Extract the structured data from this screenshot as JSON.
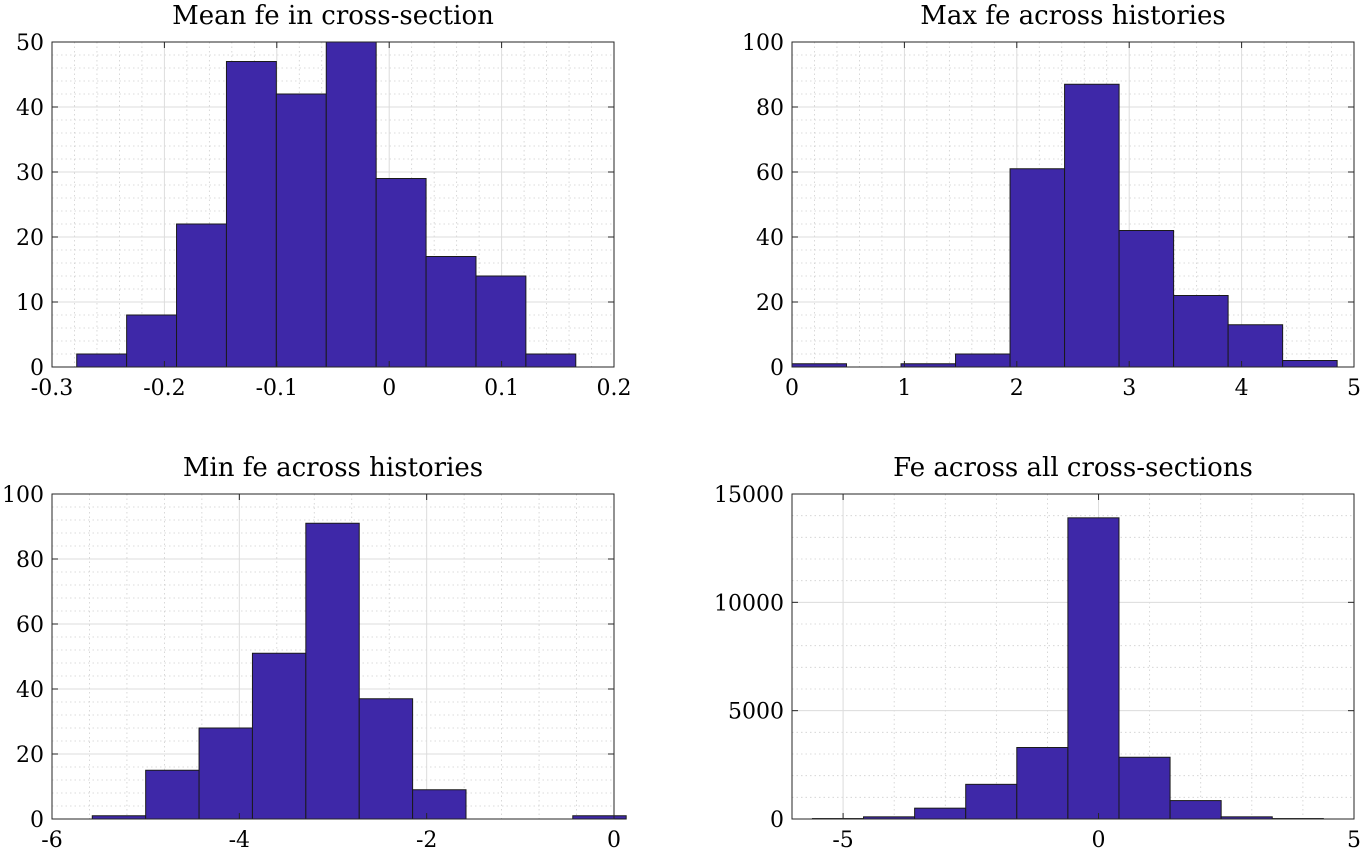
{
  "chart_data": [
    {
      "type": "bar",
      "title": "Mean fe in cross-section",
      "xlim": [
        -0.3,
        0.2
      ],
      "ylim": [
        0,
        50
      ],
      "xticks": [
        "-0.3",
        "-0.2",
        "-0.1",
        "0",
        "0.1",
        "0.2"
      ],
      "yticks": [
        "0",
        "10",
        "20",
        "30",
        "40",
        "50"
      ],
      "bin_edges": [
        -0.278,
        -0.2336,
        -0.1892,
        -0.1448,
        -0.1004,
        -0.056,
        -0.0116,
        0.0328,
        0.0772,
        0.1216,
        0.166
      ],
      "values": [
        2,
        8,
        22,
        47,
        42,
        50,
        29,
        17,
        14,
        2
      ],
      "grid": true
    },
    {
      "type": "bar",
      "title": "Max fe across histories",
      "xlim": [
        0,
        5
      ],
      "ylim": [
        0,
        100
      ],
      "xticks": [
        "0",
        "1",
        "2",
        "3",
        "4",
        "5"
      ],
      "yticks": [
        "0",
        "20",
        "40",
        "60",
        "80",
        "100"
      ],
      "bin_edges": [
        0,
        0.485,
        0.97,
        1.455,
        1.94,
        2.425,
        2.91,
        3.395,
        3.88,
        4.365,
        4.85
      ],
      "values": [
        1,
        0,
        1,
        4,
        61,
        87,
        42,
        22,
        13,
        2
      ],
      "grid": true
    },
    {
      "type": "bar",
      "title": "Min fe across histories",
      "xlim": [
        -6,
        0
      ],
      "ylim": [
        0,
        100
      ],
      "xticks": [
        "-6",
        "-4",
        "-2",
        "0"
      ],
      "yticks": [
        "0",
        "20",
        "40",
        "60",
        "80",
        "100"
      ],
      "bin_edges": [
        -5.57,
        -5.0,
        -4.43,
        -3.86,
        -3.29,
        -2.72,
        -2.15,
        -1.58,
        -1.01,
        -0.44,
        0.13
      ],
      "values": [
        1,
        15,
        28,
        51,
        91,
        37,
        9,
        0,
        0,
        1
      ],
      "grid": true
    },
    {
      "type": "bar",
      "title": "Fe across all cross-sections",
      "xlim": [
        -6,
        5
      ],
      "ylim": [
        0,
        15000
      ],
      "xticks": [
        "-5",
        "0",
        "5"
      ],
      "yticks": [
        "0",
        "5000",
        "10000",
        "15000"
      ],
      "bin_edges": [
        -5.6,
        -4.6,
        -3.6,
        -2.6,
        -1.6,
        -0.6,
        0.4,
        1.4,
        2.4,
        3.4,
        4.4
      ],
      "values": [
        20,
        100,
        500,
        1600,
        3300,
        13900,
        2850,
        850,
        100,
        20
      ],
      "grid": true
    }
  ],
  "colors": {
    "bar": "#3e28a8",
    "axis": "#262626",
    "grid": "#dcdcdc"
  }
}
